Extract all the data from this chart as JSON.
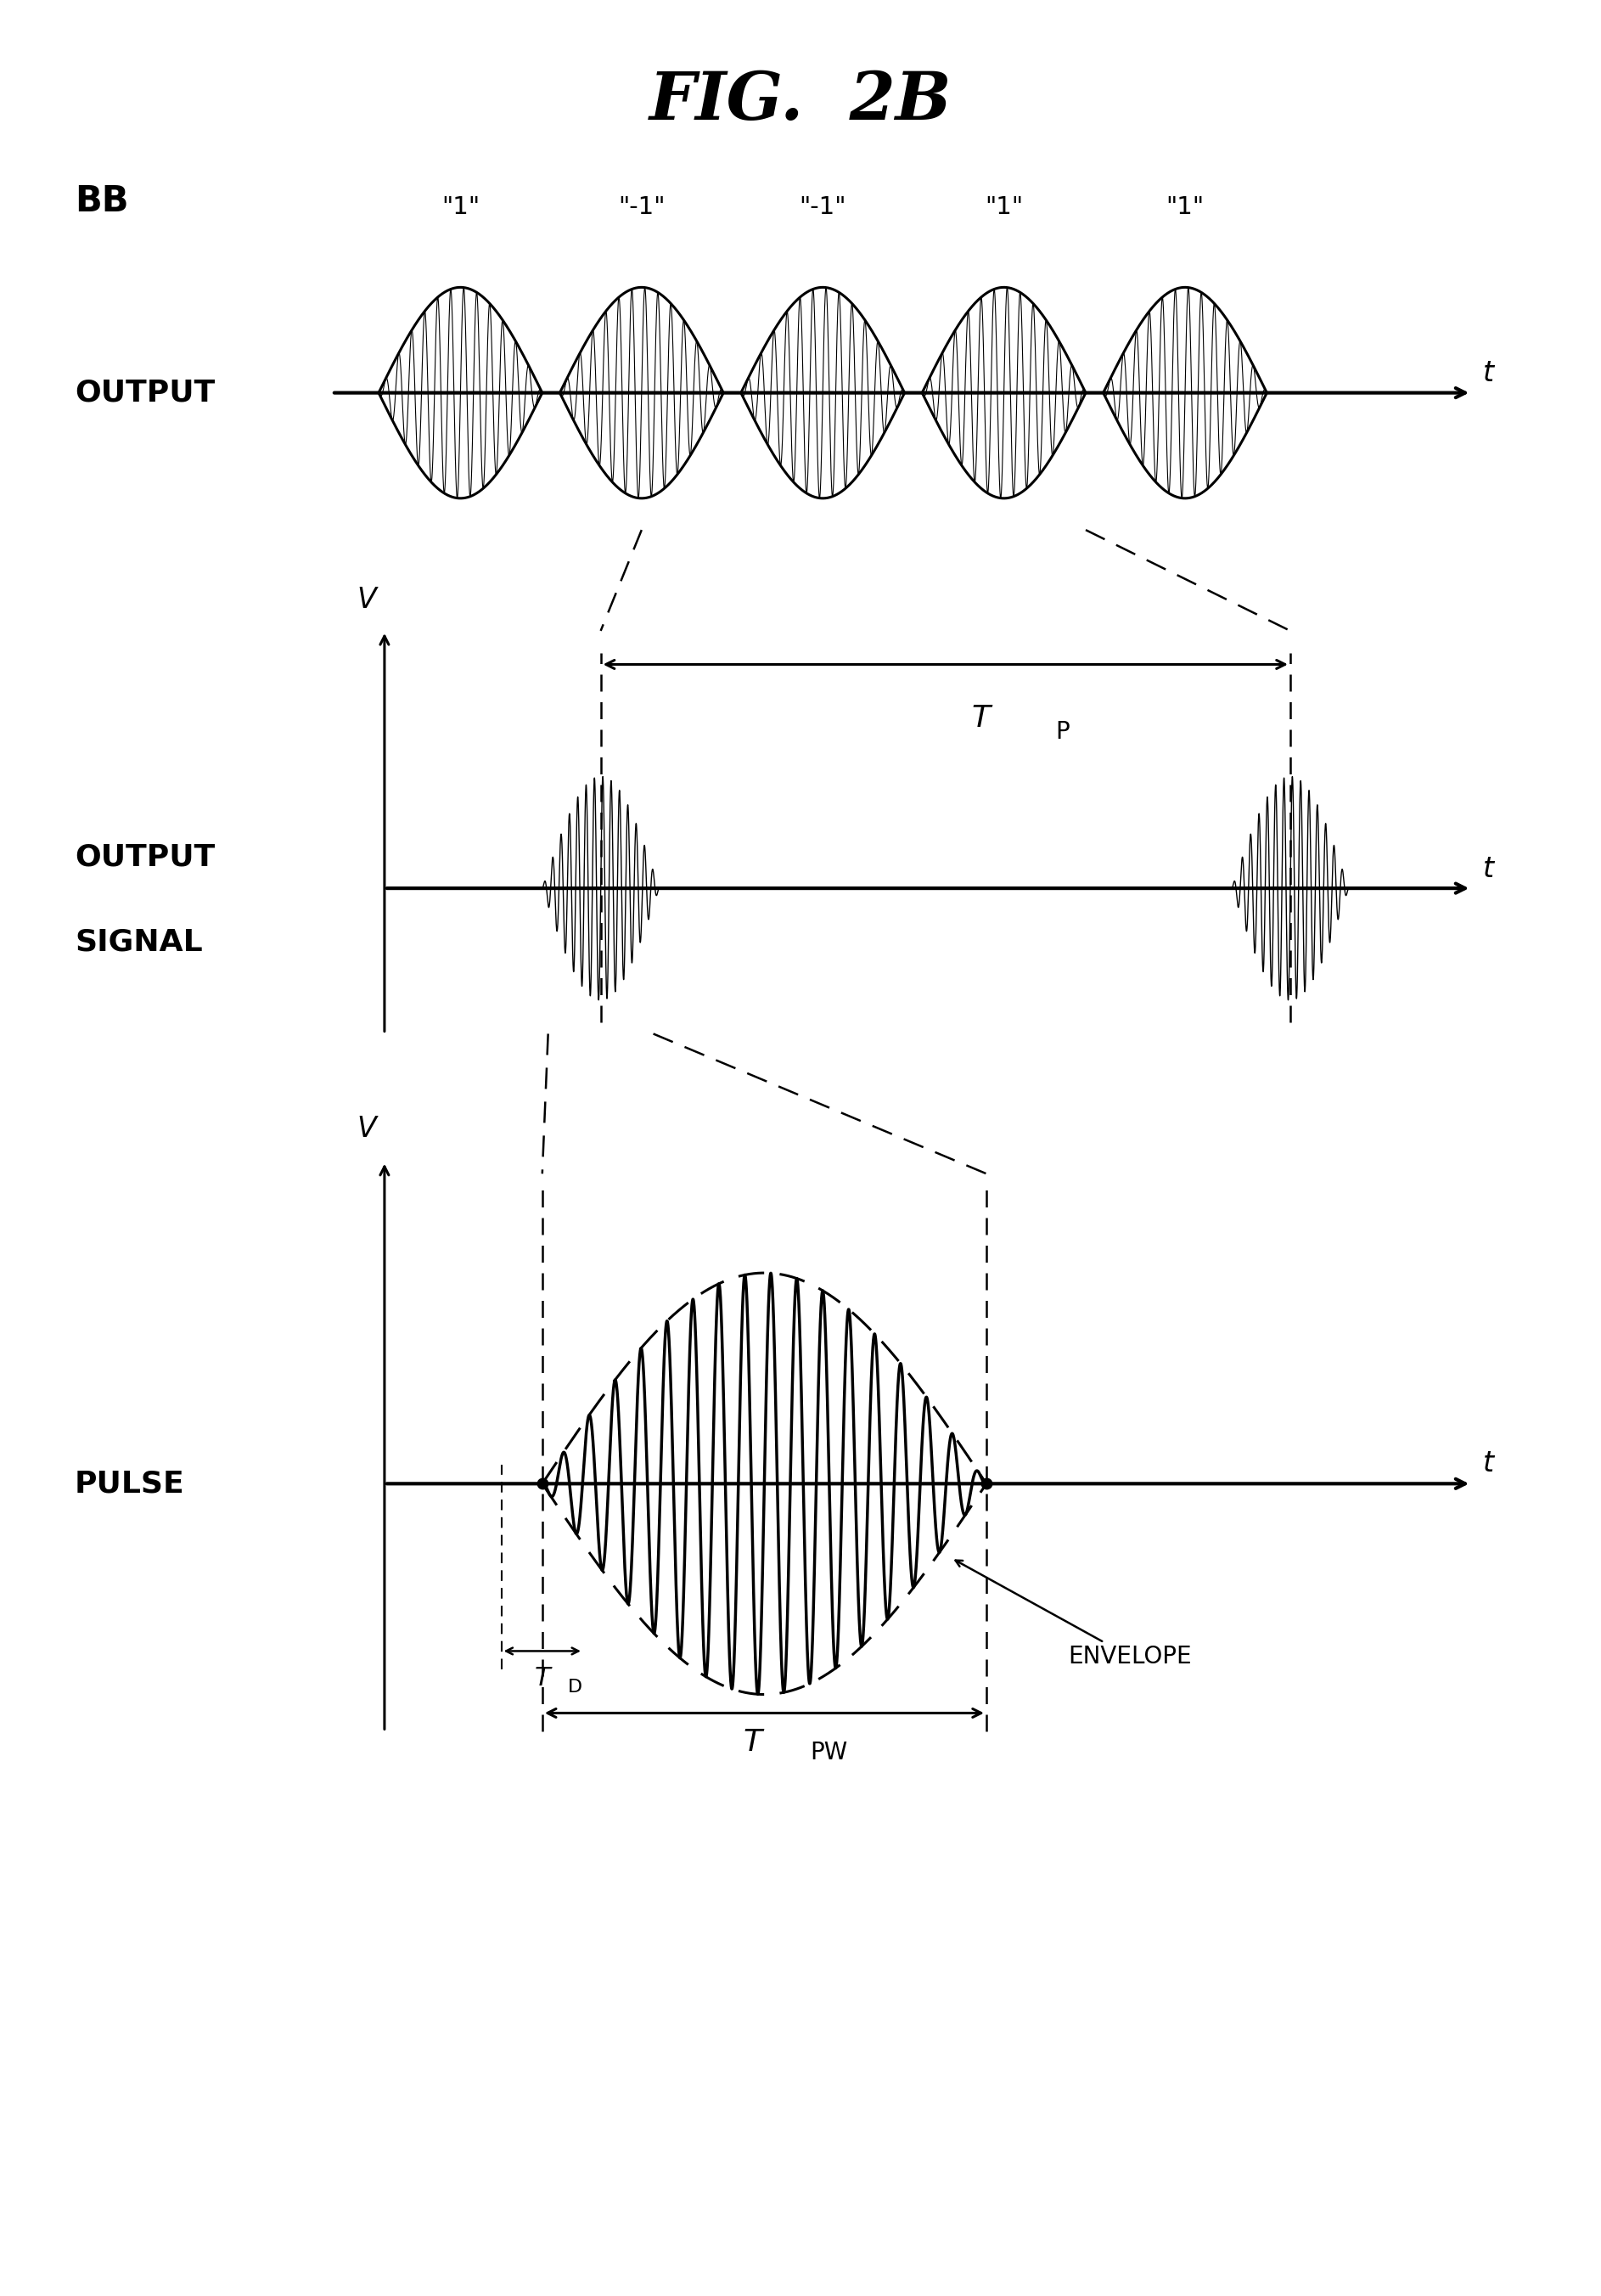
{
  "title": "FIG.  2B",
  "bg_color": "#ffffff",
  "panel1_bb_labels": [
    "\"1\"",
    "\"-1\"",
    "\"-1\"",
    "\"1\"",
    "\"1\""
  ],
  "t_label": "t",
  "v_label": "V",
  "bb_label": "BB",
  "output_label": "OUTPUT",
  "output_signal_label1": "OUTPUT",
  "output_signal_label2": "SIGNAL",
  "pulse_label": "PULSE",
  "envelope_label": "ENVELOPE",
  "tp_label": "T",
  "tp_sub": "P",
  "td_label": "T",
  "td_sub": "D",
  "tpw_label": "T",
  "tpw_sub": "PW"
}
